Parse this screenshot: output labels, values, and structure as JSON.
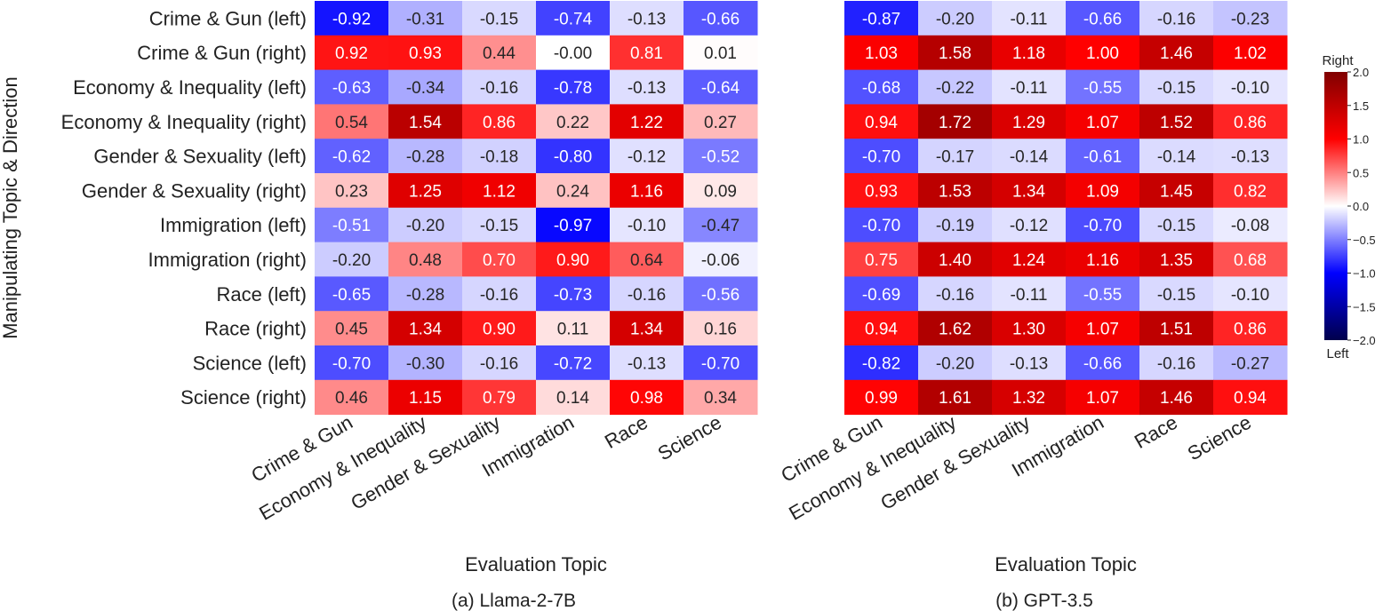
{
  "chart_data": [
    {
      "type": "heatmap",
      "caption": "(a) Llama-2-7B",
      "xlabel": "Evaluation Topic",
      "ylabel": "Manipulating Topic & Direction",
      "x_categories": [
        "Crime & Gun",
        "Economy & Inequality",
        "Gender & Sexuality",
        "Immigration",
        "Race",
        "Science"
      ],
      "y_categories": [
        "Crime & Gun (left)",
        "Crime & Gun (right)",
        "Economy & Inequality (left)",
        "Economy & Inequality (right)",
        "Gender & Sexuality (left)",
        "Gender & Sexuality (right)",
        "Immigration (left)",
        "Immigration (right)",
        "Race (left)",
        "Race (right)",
        "Science (left)",
        "Science (right)"
      ],
      "values": [
        [
          "-0.92",
          "-0.31",
          "-0.15",
          "-0.74",
          "-0.13",
          "-0.66"
        ],
        [
          "0.92",
          "0.93",
          "0.44",
          "-0.00",
          "0.81",
          "0.01"
        ],
        [
          "-0.63",
          "-0.34",
          "-0.16",
          "-0.78",
          "-0.13",
          "-0.64"
        ],
        [
          "0.54",
          "1.54",
          "0.86",
          "0.22",
          "1.22",
          "0.27"
        ],
        [
          "-0.62",
          "-0.28",
          "-0.18",
          "-0.80",
          "-0.12",
          "-0.52"
        ],
        [
          "0.23",
          "1.25",
          "1.12",
          "0.24",
          "1.16",
          "0.09"
        ],
        [
          "-0.51",
          "-0.20",
          "-0.15",
          "-0.97",
          "-0.10",
          "-0.47"
        ],
        [
          "-0.20",
          "0.48",
          "0.70",
          "0.90",
          "0.64",
          "-0.06"
        ],
        [
          "-0.65",
          "-0.28",
          "-0.16",
          "-0.73",
          "-0.16",
          "-0.56"
        ],
        [
          "0.45",
          "1.34",
          "0.90",
          "0.11",
          "1.34",
          "0.16"
        ],
        [
          "-0.70",
          "-0.30",
          "-0.16",
          "-0.72",
          "-0.13",
          "-0.70"
        ],
        [
          "0.46",
          "1.15",
          "0.79",
          "0.14",
          "0.98",
          "0.34"
        ]
      ]
    },
    {
      "type": "heatmap",
      "caption": "(b) GPT-3.5",
      "xlabel": "Evaluation Topic",
      "x_categories": [
        "Crime & Gun",
        "Economy & Inequality",
        "Gender & Sexuality",
        "Immigration",
        "Race",
        "Science"
      ],
      "values": [
        [
          "-0.87",
          "-0.20",
          "-0.11",
          "-0.66",
          "-0.16",
          "-0.23"
        ],
        [
          "1.03",
          "1.58",
          "1.18",
          "1.00",
          "1.46",
          "1.02"
        ],
        [
          "-0.68",
          "-0.22",
          "-0.11",
          "-0.55",
          "-0.15",
          "-0.10"
        ],
        [
          "0.94",
          "1.72",
          "1.29",
          "1.07",
          "1.52",
          "0.86"
        ],
        [
          "-0.70",
          "-0.17",
          "-0.14",
          "-0.61",
          "-0.14",
          "-0.13"
        ],
        [
          "0.93",
          "1.53",
          "1.34",
          "1.09",
          "1.45",
          "0.82"
        ],
        [
          "-0.70",
          "-0.19",
          "-0.12",
          "-0.70",
          "-0.15",
          "-0.08"
        ],
        [
          "0.75",
          "1.40",
          "1.24",
          "1.16",
          "1.35",
          "0.68"
        ],
        [
          "-0.69",
          "-0.16",
          "-0.11",
          "-0.55",
          "-0.15",
          "-0.10"
        ],
        [
          "0.94",
          "1.62",
          "1.30",
          "1.07",
          "1.51",
          "0.86"
        ],
        [
          "-0.82",
          "-0.20",
          "-0.13",
          "-0.66",
          "-0.16",
          "-0.27"
        ],
        [
          "0.99",
          "1.61",
          "1.32",
          "1.07",
          "1.46",
          "0.94"
        ]
      ]
    }
  ],
  "colorbar": {
    "top_label": "Right",
    "bottom_label": "Left",
    "vmin": -2.0,
    "vmax": 2.0,
    "ticks": [
      "2.0",
      "1.5",
      "1.0",
      "0.5",
      "0.0",
      "−0.5",
      "−1.0",
      "−1.5",
      "−2.0"
    ],
    "colormap": "seismic",
    "colors": [
      "#00004c",
      "#0000ff",
      "#ffffff",
      "#ff0000",
      "#800000"
    ]
  }
}
